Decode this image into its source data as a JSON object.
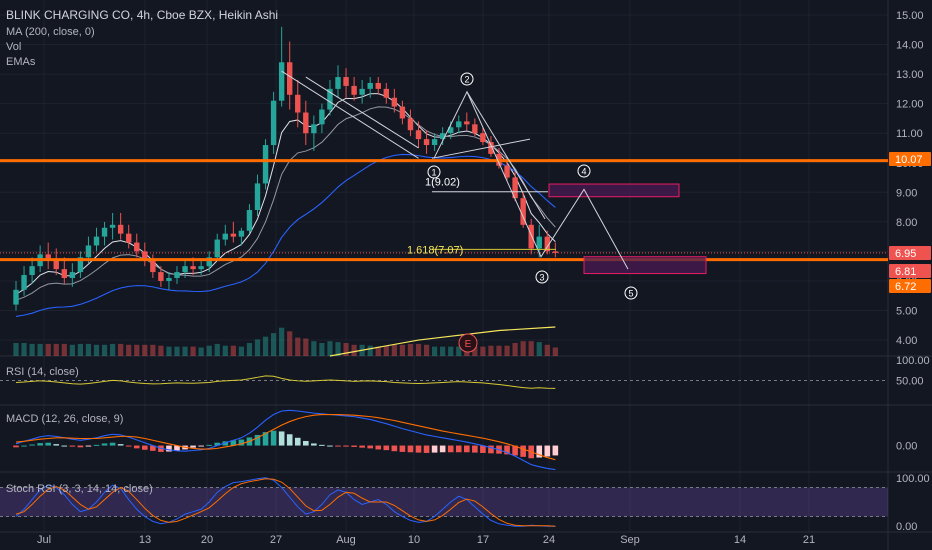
{
  "header": {
    "title": "BLINK CHARGING CO, 4h, Cboe BZX, Heikin Ashi",
    "indicators": [
      "MA (200, close, 0)",
      "Vol",
      "EMAs"
    ]
  },
  "panes": {
    "rsi_label": "RSI (14, close)",
    "macd_label": "MACD (12, 26, close, 9)",
    "stoch_label": "Stoch RSI (3, 3, 14, 14, close)"
  },
  "colors": {
    "background": "#131722",
    "up": "#26a69a",
    "down": "#ef5350",
    "orange_level": "#ff6d00",
    "projection_zone": "#e91e63",
    "stoch_band": "#7e57c2",
    "ma200": "#2962ff",
    "volume_ma": "#f5e65c",
    "rsi_line": "#d7c936"
  },
  "chart_data": [
    {
      "type": "candlestick",
      "title": "BLINK CHARGING CO, 4h, Cboe BZX, Heikin Ashi",
      "x_ticks": [
        "Jul",
        "13",
        "20",
        "27",
        "Aug",
        "10",
        "17",
        "24",
        "Sep",
        "14",
        "21"
      ],
      "y_ticks": [
        "4.00",
        "5.00",
        "6.00",
        "7.00",
        "8.00",
        "9.00",
        "10.00",
        "11.00",
        "12.00",
        "13.00",
        "14.00",
        "15.00"
      ],
      "ylim": [
        3.6,
        15.2
      ],
      "price_badges": [
        {
          "value": "10.07",
          "color": "#ff6d00"
        },
        {
          "value": "6.95",
          "color": "#ef5350"
        },
        {
          "value": "6.81",
          "color": "#ef5350"
        },
        {
          "value": "6.72",
          "color": "#ff6d00"
        }
      ],
      "levels": [
        10.07,
        6.72
      ],
      "wave_labels": [
        "1",
        "2",
        "3",
        "4",
        "5"
      ],
      "fib_labels": [
        "1(9.02)",
        "1.618(7.07)"
      ],
      "event_marker": "E",
      "wave_path": [
        {
          "x": 0,
          "y": 10.15
        },
        {
          "x": 14,
          "y": 12.4
        },
        {
          "x": 28,
          "y": 6.82
        },
        {
          "x": 35,
          "y": 9.1
        },
        {
          "x": 44,
          "y": 6.4
        }
      ],
      "zones": [
        {
          "y_top": 9.28,
          "y_bottom": 8.85
        },
        {
          "y_top": 6.82,
          "y_bottom": 6.25
        }
      ],
      "ohlc": [
        [
          5.2,
          6.0,
          5.0,
          5.7
        ],
        [
          5.7,
          6.5,
          5.5,
          6.2
        ],
        [
          6.2,
          6.8,
          5.9,
          6.5
        ],
        [
          6.5,
          7.2,
          6.3,
          6.9
        ],
        [
          6.9,
          7.3,
          6.4,
          6.7
        ],
        [
          6.7,
          7.1,
          6.2,
          6.4
        ],
        [
          6.4,
          6.8,
          5.9,
          6.1
        ],
        [
          6.1,
          6.6,
          5.8,
          6.3
        ],
        [
          6.3,
          7.0,
          6.1,
          6.8
        ],
        [
          6.8,
          7.5,
          6.6,
          7.2
        ],
        [
          7.2,
          7.8,
          7.0,
          7.5
        ],
        [
          7.5,
          8.0,
          7.2,
          7.8
        ],
        [
          7.8,
          8.3,
          7.4,
          7.9
        ],
        [
          7.9,
          8.3,
          7.4,
          7.6
        ],
        [
          7.6,
          7.9,
          7.1,
          7.3
        ],
        [
          7.3,
          7.6,
          6.8,
          7.0
        ],
        [
          7.0,
          7.3,
          6.5,
          6.7
        ],
        [
          6.7,
          6.9,
          6.1,
          6.3
        ],
        [
          6.3,
          6.5,
          5.8,
          6.0
        ],
        [
          6.0,
          6.3,
          5.7,
          6.1
        ],
        [
          6.1,
          6.5,
          5.9,
          6.3
        ],
        [
          6.3,
          6.7,
          6.1,
          6.5
        ],
        [
          6.5,
          6.8,
          6.2,
          6.4
        ],
        [
          6.4,
          6.7,
          6.2,
          6.5
        ],
        [
          6.5,
          7.0,
          6.3,
          6.8
        ],
        [
          6.8,
          7.6,
          6.7,
          7.4
        ],
        [
          7.4,
          7.9,
          7.2,
          7.6
        ],
        [
          7.6,
          8.0,
          7.3,
          7.5
        ],
        [
          7.5,
          7.8,
          7.2,
          7.7
        ],
        [
          7.7,
          8.6,
          7.6,
          8.4
        ],
        [
          8.4,
          9.6,
          8.2,
          9.3
        ],
        [
          9.3,
          10.8,
          9.1,
          10.6
        ],
        [
          10.6,
          12.4,
          10.3,
          12.1
        ],
        [
          12.1,
          14.6,
          11.9,
          13.4
        ],
        [
          13.4,
          14.1,
          11.8,
          12.3
        ],
        [
          12.3,
          12.8,
          11.2,
          11.7
        ],
        [
          11.7,
          12.1,
          10.6,
          11.0
        ],
        [
          11.0,
          11.6,
          10.4,
          11.3
        ],
        [
          11.3,
          12.0,
          11.0,
          11.8
        ],
        [
          11.8,
          12.8,
          11.6,
          12.5
        ],
        [
          12.5,
          13.3,
          12.2,
          12.9
        ],
        [
          12.9,
          13.2,
          12.2,
          12.6
        ],
        [
          12.6,
          12.9,
          12.1,
          12.3
        ],
        [
          12.3,
          12.8,
          12.0,
          12.5
        ],
        [
          12.5,
          12.9,
          12.2,
          12.7
        ],
        [
          12.7,
          12.9,
          12.3,
          12.5
        ],
        [
          12.5,
          12.7,
          12.0,
          12.2
        ],
        [
          12.2,
          12.5,
          11.7,
          11.9
        ],
        [
          11.9,
          12.1,
          11.3,
          11.5
        ],
        [
          11.5,
          11.8,
          10.9,
          11.1
        ],
        [
          11.1,
          11.4,
          10.5,
          10.8
        ],
        [
          10.8,
          11.1,
          10.3,
          10.6
        ],
        [
          10.6,
          11.0,
          10.4,
          10.8
        ],
        [
          10.8,
          11.2,
          10.6,
          11.0
        ],
        [
          11.0,
          11.4,
          10.8,
          11.2
        ],
        [
          11.2,
          11.6,
          11.0,
          11.4
        ],
        [
          11.4,
          11.7,
          11.1,
          11.3
        ],
        [
          11.3,
          11.5,
          10.9,
          11.0
        ],
        [
          11.0,
          11.2,
          10.6,
          10.7
        ],
        [
          10.7,
          10.9,
          10.2,
          10.3
        ],
        [
          10.3,
          10.5,
          9.8,
          9.9
        ],
        [
          9.9,
          10.1,
          9.4,
          9.5
        ],
        [
          9.5,
          9.7,
          8.7,
          8.8
        ],
        [
          8.8,
          9.0,
          7.8,
          7.9
        ],
        [
          7.9,
          8.1,
          6.9,
          7.1
        ],
        [
          7.1,
          7.9,
          6.8,
          7.5
        ],
        [
          7.5,
          7.7,
          6.9,
          7.0
        ],
        [
          7.0,
          7.3,
          6.8,
          6.95
        ]
      ],
      "volume_ma": [
        {
          "x": 39,
          "y": 0.0
        },
        {
          "x": 50,
          "y": 0.55
        },
        {
          "x": 60,
          "y": 0.88
        },
        {
          "x": 67,
          "y": 1.0
        }
      ]
    },
    {
      "type": "line",
      "title": "RSI (14, close)",
      "y_ticks": [
        "100.00",
        "50.00"
      ],
      "ylim": [
        0,
        100
      ],
      "series": [
        {
          "values": [
            50,
            52,
            55,
            58,
            56,
            52,
            48,
            44,
            42,
            45,
            50,
            55,
            60,
            58,
            52,
            48,
            45,
            43,
            44,
            46,
            48,
            47,
            46,
            48,
            50,
            55,
            58,
            60,
            62,
            68,
            75,
            82,
            80,
            70,
            62,
            58,
            56,
            58,
            60,
            62,
            60,
            58,
            55,
            57,
            58,
            56,
            54,
            50,
            48,
            46,
            45,
            46,
            48,
            50,
            52,
            54,
            52,
            50,
            48,
            44,
            40,
            35,
            30,
            25,
            22,
            24,
            22,
            21
          ]
        }
      ]
    },
    {
      "type": "bar",
      "title": "MACD (12, 26, close, 9)",
      "y_ticks": [
        "0.00"
      ],
      "ylim": [
        -0.75,
        1.15
      ],
      "series": [
        {
          "values": [
            0.05,
            0.12,
            0.18,
            0.25,
            0.28,
            0.26,
            0.22,
            0.18,
            0.15,
            0.18,
            0.22,
            0.28,
            0.32,
            0.3,
            0.24,
            0.16,
            0.08,
            0.0,
            -0.08,
            -0.12,
            -0.15,
            -0.16,
            -0.14,
            -0.12,
            -0.08,
            0.0,
            0.08,
            0.15,
            0.22,
            0.35,
            0.52,
            0.72,
            0.88,
            0.98,
            1.0,
            0.98,
            0.95,
            0.92,
            0.9,
            0.88,
            0.86,
            0.84,
            0.82,
            0.78,
            0.74,
            0.68,
            0.62,
            0.55,
            0.48,
            0.42,
            0.36,
            0.3,
            0.26,
            0.22,
            0.18,
            0.14,
            0.1,
            0.05,
            0.0,
            -0.06,
            -0.12,
            -0.2,
            -0.3,
            -0.42,
            -0.54,
            -0.6,
            -0.65,
            -0.68
          ]
        },
        {
          "values": [
            0.1,
            0.12,
            0.15,
            0.18,
            0.2,
            0.22,
            0.22,
            0.21,
            0.2,
            0.2,
            0.2,
            0.22,
            0.24,
            0.26,
            0.26,
            0.24,
            0.2,
            0.15,
            0.1,
            0.05,
            0.0,
            -0.05,
            -0.08,
            -0.1,
            -0.1,
            -0.08,
            -0.04,
            0.0,
            0.05,
            0.12,
            0.22,
            0.34,
            0.46,
            0.58,
            0.68,
            0.76,
            0.82,
            0.86,
            0.88,
            0.88,
            0.88,
            0.87,
            0.86,
            0.84,
            0.82,
            0.79,
            0.75,
            0.71,
            0.66,
            0.61,
            0.56,
            0.51,
            0.46,
            0.41,
            0.37,
            0.33,
            0.29,
            0.25,
            0.21,
            0.16,
            0.11,
            0.05,
            -0.02,
            -0.1,
            -0.18,
            -0.26,
            -0.34,
            -0.4
          ]
        },
        {
          "values": [
            -0.05,
            0.0,
            0.03,
            0.07,
            0.08,
            0.04,
            0.0,
            -0.03,
            -0.05,
            -0.02,
            0.02,
            0.06,
            0.08,
            0.04,
            -0.02,
            -0.08,
            -0.12,
            -0.15,
            -0.18,
            -0.17,
            -0.15,
            -0.11,
            -0.06,
            -0.02,
            0.02,
            0.08,
            0.12,
            0.15,
            0.17,
            0.23,
            0.3,
            0.38,
            0.42,
            0.4,
            0.32,
            0.22,
            0.13,
            0.06,
            0.02,
            0.0,
            -0.02,
            -0.03,
            -0.04,
            -0.06,
            -0.08,
            -0.11,
            -0.13,
            -0.16,
            -0.18,
            -0.19,
            -0.2,
            -0.21,
            -0.2,
            -0.19,
            -0.19,
            -0.19,
            -0.19,
            -0.2,
            -0.21,
            -0.22,
            -0.23,
            -0.25,
            -0.28,
            -0.32,
            -0.36,
            -0.34,
            -0.31,
            -0.28
          ]
        }
      ]
    },
    {
      "type": "line",
      "title": "Stoch RSI (3, 3, 14, 14, close)",
      "y_ticks": [
        "100.00",
        "0.00"
      ],
      "ylim": [
        -12,
        112
      ],
      "series": [
        {
          "values": [
            20,
            35,
            55,
            75,
            85,
            80,
            65,
            45,
            30,
            35,
            50,
            70,
            85,
            78,
            55,
            35,
            20,
            10,
            5,
            8,
            15,
            25,
            30,
            35,
            50,
            70,
            82,
            90,
            92,
            95,
            98,
            100,
            95,
            80,
            60,
            40,
            25,
            30,
            45,
            65,
            75,
            70,
            55,
            45,
            50,
            55,
            45,
            30,
            20,
            12,
            8,
            10,
            20,
            35,
            50,
            62,
            55,
            40,
            25,
            12,
            5,
            2,
            0,
            0,
            2,
            1,
            0,
            0
          ]
        },
        {
          "values": [
            25,
            30,
            45,
            62,
            76,
            82,
            75,
            60,
            45,
            35,
            40,
            55,
            70,
            80,
            72,
            55,
            37,
            22,
            12,
            8,
            10,
            16,
            23,
            30,
            38,
            52,
            67,
            80,
            88,
            92,
            95,
            98,
            97,
            91,
            78,
            60,
            42,
            32,
            33,
            45,
            60,
            70,
            68,
            58,
            50,
            50,
            50,
            43,
            32,
            21,
            13,
            10,
            13,
            22,
            35,
            49,
            56,
            52,
            40,
            26,
            14,
            6,
            2,
            1,
            1,
            1,
            1,
            0
          ]
        }
      ]
    }
  ]
}
